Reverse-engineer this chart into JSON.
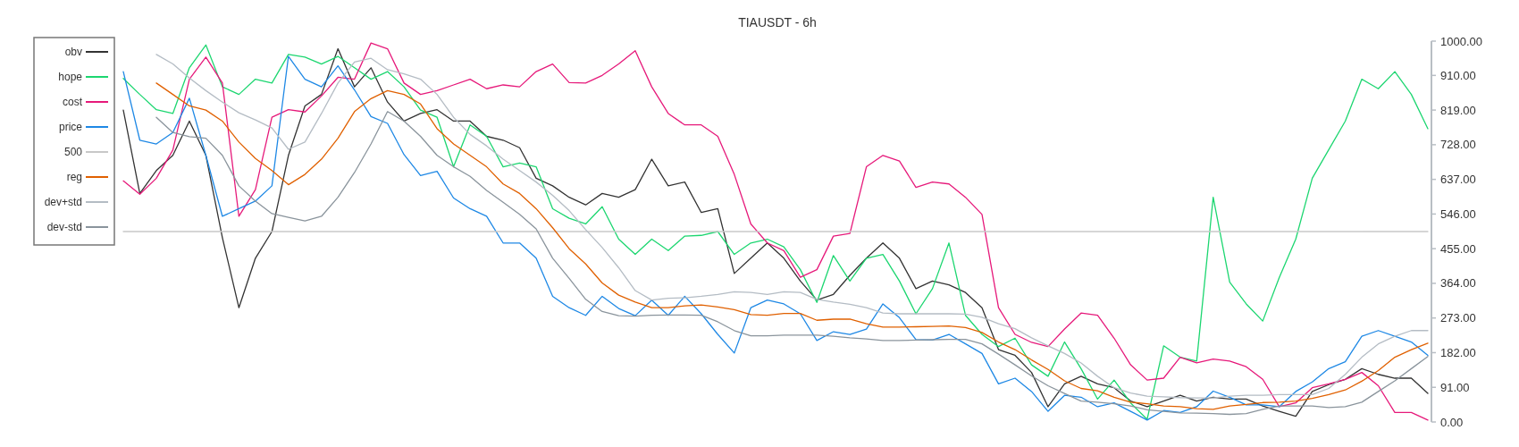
{
  "chart_data": {
    "type": "line",
    "title": "TIAUSDT - 6h",
    "categories": [
      null,
      null,
      null,
      null,
      null,
      null,
      null,
      null,
      null,
      null,
      null,
      null,
      null,
      null,
      null,
      null,
      null,
      null,
      null,
      null,
      null,
      null,
      null,
      null,
      null,
      null,
      null,
      null,
      null,
      null,
      null,
      null,
      null,
      null,
      null,
      null,
      null,
      null,
      null,
      null,
      null,
      null,
      null,
      null,
      null,
      null,
      null,
      null,
      null,
      null,
      null,
      null,
      null,
      null,
      null,
      null,
      null,
      null,
      null,
      null,
      null,
      null,
      null,
      null,
      null,
      null,
      null,
      null,
      null,
      null,
      null,
      null,
      null,
      null,
      null,
      null,
      null,
      null,
      null,
      null
    ],
    "series": [
      {
        "name": "obv",
        "color": "#333333",
        "values": [
          819,
          600,
          660,
          700,
          790,
          700,
          484,
          300,
          430,
          500,
          700,
          830,
          860,
          980,
          880,
          930,
          840,
          790,
          810,
          820,
          790,
          790,
          750,
          740,
          720,
          640,
          620,
          590,
          570,
          600,
          590,
          610,
          690,
          620,
          630,
          550,
          560,
          390,
          430,
          470,
          430,
          370,
          320,
          335,
          385,
          430,
          470,
          430,
          350,
          370,
          360,
          340,
          300,
          190,
          175,
          130,
          40,
          100,
          120,
          100,
          90,
          55,
          40,
          55,
          70,
          55,
          65,
          60,
          60,
          42,
          28,
          15,
          80,
          98,
          112,
          140,
          125,
          115,
          115,
          75
        ]
      },
      {
        "name": "hope",
        "color": "#1cd670",
        "values": [
          902,
          860,
          820,
          810,
          930,
          990,
          880,
          860,
          900,
          890,
          965,
          958,
          940,
          960,
          930,
          900,
          920,
          880,
          819,
          800,
          670,
          780,
          750,
          670,
          680,
          670,
          560,
          535,
          520,
          565,
          480,
          440,
          480,
          450,
          488,
          490,
          500,
          440,
          470,
          480,
          460,
          400,
          314,
          437,
          370,
          430,
          440,
          370,
          284,
          350,
          470,
          280,
          230,
          198,
          220,
          150,
          120,
          210,
          140,
          60,
          110,
          50,
          7,
          200,
          170,
          160,
          590,
          367,
          310,
          265,
          379,
          480,
          640,
          715,
          790,
          900,
          875,
          920,
          860,
          770
        ]
      },
      {
        "name": "cost",
        "color": "#e6197a",
        "values": [
          633,
          598,
          640,
          714,
          900,
          958,
          890,
          540,
          610,
          800,
          820,
          814,
          856,
          905,
          900,
          995,
          980,
          890,
          860,
          870,
          885,
          900,
          875,
          885,
          880,
          920,
          940,
          891,
          890,
          910,
          940,
          975,
          880,
          810,
          780,
          780,
          750,
          650,
          520,
          470,
          450,
          380,
          400,
          488,
          495,
          670,
          700,
          685,
          616,
          630,
          625,
          590,
          545,
          300,
          230,
          209,
          198,
          244,
          286,
          280,
          220,
          150,
          110,
          115,
          170,
          155,
          165,
          160,
          145,
          112,
          40,
          50,
          90,
          100,
          112,
          130,
          95,
          25,
          25,
          5
        ]
      },
      {
        "name": "price",
        "color": "#1e88e5",
        "values": [
          920,
          740,
          730,
          760,
          850,
          700,
          540,
          560,
          580,
          620,
          960,
          900,
          880,
          935,
          872,
          802,
          784,
          702,
          647,
          658,
          588,
          560,
          540,
          470,
          470,
          430,
          330,
          300,
          280,
          330,
          298,
          279,
          320,
          280,
          330,
          284,
          230,
          181,
          300,
          320,
          310,
          284,
          214,
          237,
          230,
          244,
          310,
          274,
          216,
          215,
          230,
          205,
          180,
          100,
          115,
          80,
          28,
          70,
          65,
          40,
          50,
          28,
          5,
          30,
          25,
          40,
          81,
          65,
          45,
          45,
          40,
          80,
          105,
          140,
          158,
          225,
          240,
          225,
          210,
          175
        ]
      },
      {
        "name": "500",
        "color": "#c8c8c8",
        "values": [
          500,
          500,
          500,
          500,
          500,
          500,
          500,
          500,
          500,
          500,
          500,
          500,
          500,
          500,
          500,
          500,
          500,
          500,
          500,
          500,
          500,
          500,
          500,
          500,
          500,
          500,
          500,
          500,
          500,
          500,
          500,
          500,
          500,
          500,
          500,
          500,
          500,
          500,
          500,
          500,
          500,
          500,
          500,
          500,
          500,
          500,
          500,
          500,
          500,
          500,
          500,
          500,
          500,
          500,
          500,
          500,
          500,
          500,
          500,
          500,
          500,
          500,
          500,
          500,
          500,
          500,
          500,
          500,
          500,
          500,
          500,
          500,
          500,
          500,
          500,
          500,
          500,
          500,
          500,
          500
        ]
      },
      {
        "name": "reg",
        "color": "#e06000",
        "values": [
          null,
          null,
          890,
          860,
          830,
          819,
          790,
          735,
          692,
          660,
          623,
          650,
          690,
          745,
          815,
          849,
          870,
          860,
          835,
          770,
          730,
          700,
          670,
          625,
          600,
          560,
          510,
          455,
          415,
          365,
          333,
          315,
          300,
          300,
          305,
          307,
          302,
          295,
          282,
          280,
          285,
          285,
          267,
          270,
          270,
          258,
          249,
          249,
          250,
          251,
          252,
          248,
          235,
          210,
          190,
          163,
          138,
          108,
          88,
          82,
          65,
          52,
          48,
          42,
          40,
          35,
          33,
          42,
          46,
          51,
          52,
          55,
          62,
          72,
          84,
          107,
          135,
          170,
          190,
          207
        ]
      },
      {
        "name": "dev+std",
        "color": "#b4bcc4",
        "values": [
          null,
          null,
          965,
          940,
          903,
          870,
          840,
          812,
          793,
          772,
          716,
          735,
          810,
          890,
          945,
          955,
          925,
          914,
          900,
          860,
          800,
          755,
          725,
          690,
          660,
          630,
          595,
          555,
          505,
          458,
          405,
          345,
          320,
          325,
          326,
          330,
          335,
          342,
          340,
          335,
          342,
          340,
          322,
          315,
          309,
          300,
          286,
          284,
          284,
          284,
          284,
          283,
          275,
          258,
          245,
          221,
          200,
          180,
          155,
          120,
          90,
          76,
          68,
          66,
          64,
          63,
          63,
          68,
          70,
          70,
          72,
          72,
          72,
          88,
          125,
          170,
          205,
          225,
          240,
          240
        ]
      },
      {
        "name": "dev-std",
        "color": "#8a949c",
        "values": [
          null,
          null,
          800,
          760,
          749,
          745,
          700,
          620,
          580,
          547,
          537,
          528,
          540,
          590,
          655,
          730,
          815,
          790,
          750,
          700,
          670,
          645,
          608,
          577,
          545,
          507,
          430,
          377,
          322,
          290,
          279,
          278,
          280,
          281,
          281,
          280,
          263,
          240,
          226,
          226,
          228,
          228,
          228,
          225,
          221,
          218,
          214,
          214,
          215,
          216,
          217,
          217,
          205,
          178,
          150,
          121,
          95,
          75,
          55,
          52,
          48,
          42,
          32,
          28,
          24,
          23,
          22,
          20,
          22,
          33,
          42,
          42,
          42,
          38,
          40,
          52,
          80,
          108,
          140,
          172
        ]
      }
    ],
    "ylim": [
      0,
      1000
    ],
    "yticks": [
      {
        "value": 0,
        "label": "0.00"
      },
      {
        "value": 91,
        "label": "91.00"
      },
      {
        "value": 182,
        "label": "182.00"
      },
      {
        "value": 273,
        "label": "273.00"
      },
      {
        "value": 364,
        "label": "364.00"
      },
      {
        "value": 455,
        "label": "455.00"
      },
      {
        "value": 546,
        "label": "546.00"
      },
      {
        "value": 637,
        "label": "637.00"
      },
      {
        "value": 728,
        "label": "728.00"
      },
      {
        "value": 819,
        "label": "819.00"
      },
      {
        "value": 910,
        "label": "910.00"
      },
      {
        "value": 1000,
        "label": "1000.00"
      }
    ],
    "legend": "left",
    "tick_labels": "y"
  }
}
